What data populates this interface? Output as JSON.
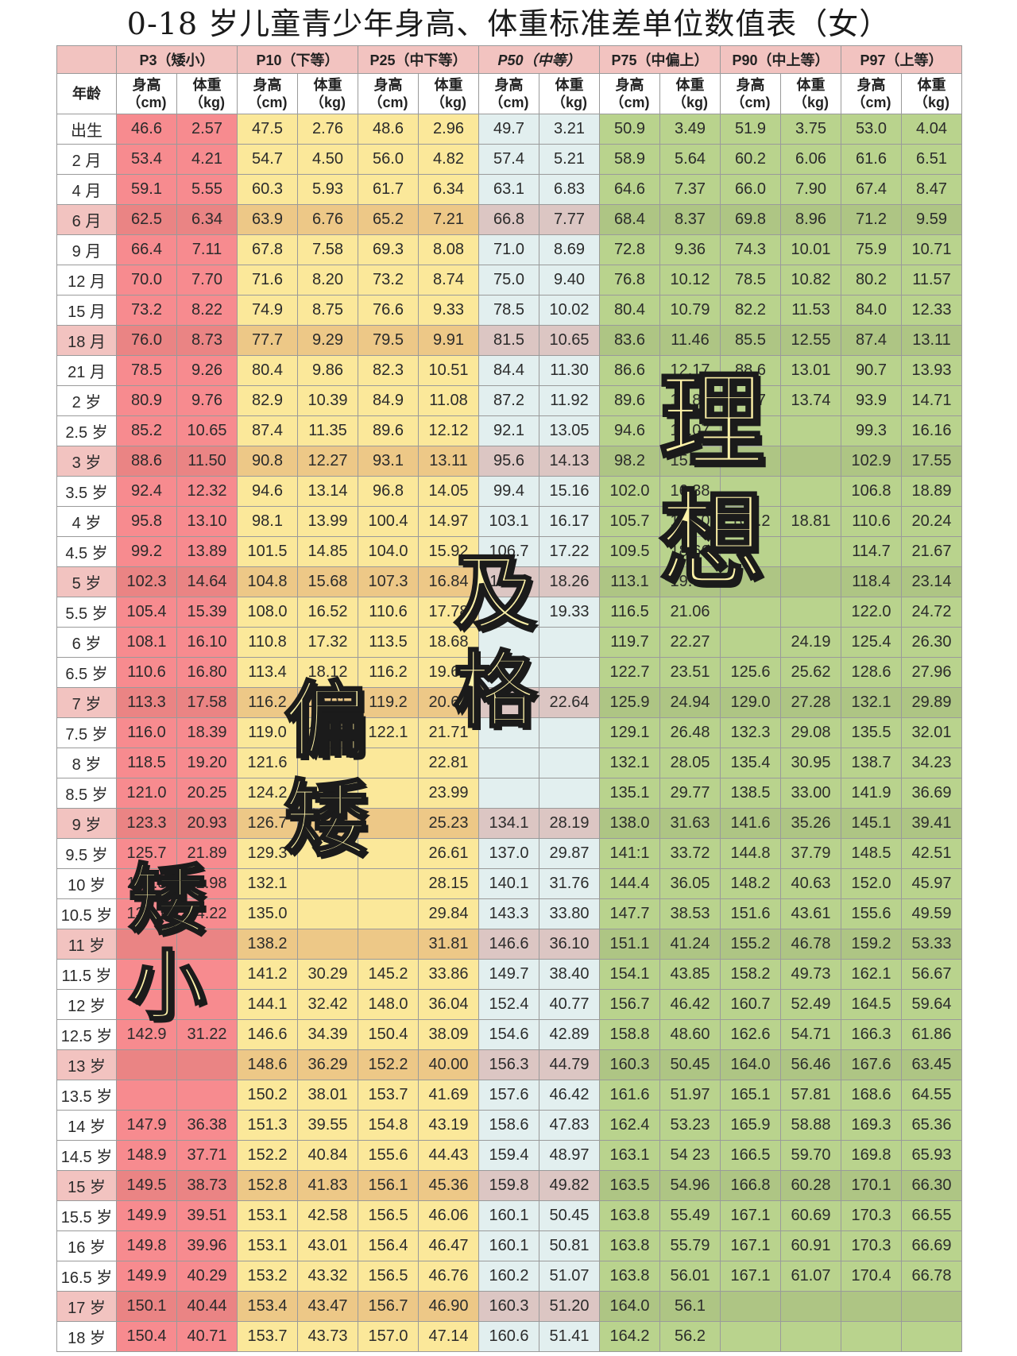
{
  "title": "0-18 岁儿童青少年身高、体重标准差单位数值表（女）",
  "header": {
    "age_label": "年龄",
    "groups": [
      "P3（矮小）",
      "P10（下等）",
      "P25（中下等）",
      "P50（中等）",
      "P75（中偏上）",
      "P90（中上等）",
      "P97（上等）"
    ],
    "height_label": "身高\n（cm)",
    "weight_label": "体重\n（kg)"
  },
  "colors": {
    "p3": "#f78b8f",
    "p10": "#fbe89a",
    "p25": "#fbe89a",
    "p50": "#e2efef",
    "p75": "#b9d38d",
    "p90": "#b9d38d",
    "p97": "#b9d38d"
  },
  "rows": [
    {
      "age": "出生",
      "v": [
        "46.6",
        "2.57",
        "47.5",
        "2.76",
        "48.6",
        "2.96",
        "49.7",
        "3.21",
        "50.9",
        "3.49",
        "51.9",
        "3.75",
        "53.0",
        "4.04"
      ]
    },
    {
      "age": "2 月",
      "v": [
        "53.4",
        "4.21",
        "54.7",
        "4.50",
        "56.0",
        "4.82",
        "57.4",
        "5.21",
        "58.9",
        "5.64",
        "60.2",
        "6.06",
        "61.6",
        "6.51"
      ]
    },
    {
      "age": "4 月",
      "v": [
        "59.1",
        "5.55",
        "60.3",
        "5.93",
        "61.7",
        "6.34",
        "63.1",
        "6.83",
        "64.6",
        "7.37",
        "66.0",
        "7.90",
        "67.4",
        "8.47"
      ]
    },
    {
      "age": "6 月",
      "v": [
        "62.5",
        "6.34",
        "63.9",
        "6.76",
        "65.2",
        "7.21",
        "66.8",
        "7.77",
        "68.4",
        "8.37",
        "69.8",
        "8.96",
        "71.2",
        "9.59"
      ]
    },
    {
      "age": "9 月",
      "v": [
        "66.4",
        "7.11",
        "67.8",
        "7.58",
        "69.3",
        "8.08",
        "71.0",
        "8.69",
        "72.8",
        "9.36",
        "74.3",
        "10.01",
        "75.9",
        "10.71"
      ]
    },
    {
      "age": "12 月",
      "v": [
        "70.0",
        "7.70",
        "71.6",
        "8.20",
        "73.2",
        "8.74",
        "75.0",
        "9.40",
        "76.8",
        "10.12",
        "78.5",
        "10.82",
        "80.2",
        "11.57"
      ]
    },
    {
      "age": "15 月",
      "v": [
        "73.2",
        "8.22",
        "74.9",
        "8.75",
        "76.6",
        "9.33",
        "78.5",
        "10.02",
        "80.4",
        "10.79",
        "82.2",
        "11.53",
        "84.0",
        "12.33"
      ]
    },
    {
      "age": "18 月",
      "v": [
        "76.0",
        "8.73",
        "77.7",
        "9.29",
        "79.5",
        "9.91",
        "81.5",
        "10.65",
        "83.6",
        "11.46",
        "85.5",
        "12.55",
        "87.4",
        "13.11"
      ]
    },
    {
      "age": "21 月",
      "v": [
        "78.5",
        "9.26",
        "80.4",
        "9.86",
        "82.3",
        "10.51",
        "84.4",
        "11.30",
        "86.6",
        "12.17",
        "88.6",
        "13.01",
        "90.7",
        "13.93"
      ]
    },
    {
      "age": "2 岁",
      "v": [
        "80.9",
        "9.76",
        "82.9",
        "10.39",
        "84.9",
        "11.08",
        "87.2",
        "11.92",
        "89.6",
        "12.84",
        "91.7",
        "13.74",
        "93.9",
        "14.71"
      ]
    },
    {
      "age": "2.5 岁",
      "v": [
        "85.2",
        "10.65",
        "87.4",
        "11.35",
        "89.6",
        "12.12",
        "92.1",
        "13.05",
        "94.6",
        "14.07",
        "",
        "",
        "99.3",
        "16.16"
      ]
    },
    {
      "age": "3 岁",
      "v": [
        "88.6",
        "11.50",
        "90.8",
        "12.27",
        "93.1",
        "13.11",
        "95.6",
        "14.13",
        "98.2",
        "15.25",
        "",
        "",
        "102.9",
        "17.55"
      ]
    },
    {
      "age": "3.5 岁",
      "v": [
        "92.4",
        "12.32",
        "94.6",
        "13.14",
        "96.8",
        "14.05",
        "99.4",
        "15.16",
        "102.0",
        "16.38",
        "",
        "",
        "106.8",
        "18.89"
      ]
    },
    {
      "age": "4 岁",
      "v": [
        "95.8",
        "13.10",
        "98.1",
        "13.99",
        "100.4",
        "14.97",
        "103.1",
        "16.17",
        "105.7",
        "17.50",
        "108.2",
        "18.81",
        "110.6",
        "20.24"
      ]
    },
    {
      "age": "4.5 岁",
      "v": [
        "99.2",
        "13.89",
        "101.5",
        "14.85",
        "104.0",
        "15.92",
        "106.7",
        "17.22",
        "109.5",
        "18.66",
        "",
        "",
        "114.7",
        "21.67"
      ]
    },
    {
      "age": "5 岁",
      "v": [
        "102.3",
        "14.64",
        "104.8",
        "15.68",
        "107.3",
        "16.84",
        "110.2",
        "18.26",
        "113.1",
        "19.83",
        "",
        "",
        "118.4",
        "23.14"
      ]
    },
    {
      "age": "5.5 岁",
      "v": [
        "105.4",
        "15.39",
        "108.0",
        "16.52",
        "110.6",
        "17.78",
        "",
        "19.33",
        "116.5",
        "21.06",
        "",
        "",
        "122.0",
        "24.72"
      ]
    },
    {
      "age": "6 岁",
      "v": [
        "108.1",
        "16.10",
        "110.8",
        "17.32",
        "113.5",
        "18.68",
        "",
        "",
        "119.7",
        "22.27",
        "",
        "24.19",
        "125.4",
        "26.30"
      ]
    },
    {
      "age": "6.5 岁",
      "v": [
        "110.6",
        "16.80",
        "113.4",
        "18.12",
        "116.2",
        "19.60",
        "",
        "",
        "122.7",
        "23.51",
        "125.6",
        "25.62",
        "128.6",
        "27.96"
      ]
    },
    {
      "age": "7 岁",
      "v": [
        "113.3",
        "17.58",
        "116.2",
        "19.01",
        "119.2",
        "20.62",
        "",
        "22.64",
        "125.9",
        "24.94",
        "129.0",
        "27.28",
        "132.1",
        "29.89"
      ]
    },
    {
      "age": "7.5 岁",
      "v": [
        "116.0",
        "18.39",
        "119.0",
        "19.95",
        "122.1",
        "21.71",
        "",
        "",
        "129.1",
        "26.48",
        "132.3",
        "29.08",
        "135.5",
        "32.01"
      ]
    },
    {
      "age": "8 岁",
      "v": [
        "118.5",
        "19.20",
        "121.6",
        "",
        "",
        "22.81",
        "",
        "",
        "132.1",
        "28.05",
        "135.4",
        "30.95",
        "138.7",
        "34.23"
      ]
    },
    {
      "age": "8.5 岁",
      "v": [
        "121.0",
        "20.25",
        "124.2",
        "",
        "",
        "23.99",
        "",
        "",
        "135.1",
        "29.77",
        "138.5",
        "33.00",
        "141.9",
        "36.69"
      ]
    },
    {
      "age": "9 岁",
      "v": [
        "123.3",
        "20.93",
        "126.7",
        "",
        "",
        "25.23",
        "134.1",
        "28.19",
        "138.0",
        "31.63",
        "141.6",
        "35.26",
        "145.1",
        "39.41"
      ]
    },
    {
      "age": "9.5 岁",
      "v": [
        "125.7",
        "21.89",
        "129.3",
        "",
        "",
        "26.61",
        "137.0",
        "29.87",
        "141:1",
        "33.72",
        "144.8",
        "37.79",
        "148.5",
        "42.51"
      ]
    },
    {
      "age": "10 岁",
      "v": [
        "128.3",
        "22.98",
        "132.1",
        "",
        "",
        "28.15",
        "140.1",
        "31.76",
        "144.4",
        "36.05",
        "148.2",
        "40.63",
        "152.0",
        "45.97"
      ]
    },
    {
      "age": "10.5 岁",
      "v": [
        "131.1",
        "24.22",
        "135.0",
        "",
        "",
        "29.84",
        "143.3",
        "33.80",
        "147.7",
        "38.53",
        "151.6",
        "43.61",
        "155.6",
        "49.59"
      ]
    },
    {
      "age": "11 岁",
      "v": [
        "",
        "",
        "138.2",
        "",
        "",
        "31.81",
        "146.6",
        "36.10",
        "151.1",
        "41.24",
        "155.2",
        "46.78",
        "159.2",
        "53.33"
      ]
    },
    {
      "age": "11.5 岁",
      "v": [
        "",
        "",
        "141.2",
        "30.29",
        "145.2",
        "33.86",
        "149.7",
        "38.40",
        "154.1",
        "43.85",
        "158.2",
        "49.73",
        "162.1",
        "56.67"
      ]
    },
    {
      "age": "12 岁",
      "v": [
        "",
        "",
        "144.1",
        "32.42",
        "148.0",
        "36.04",
        "152.4",
        "40.77",
        "156.7",
        "46.42",
        "160.7",
        "52.49",
        "164.5",
        "59.64"
      ]
    },
    {
      "age": "12.5 岁",
      "v": [
        "142.9",
        "31.22",
        "146.6",
        "34.39",
        "150.4",
        "38.09",
        "154.6",
        "42.89",
        "158.8",
        "48.60",
        "162.6",
        "54.71",
        "166.3",
        "61.86"
      ]
    },
    {
      "age": "13 岁",
      "v": [
        "",
        "",
        "148.6",
        "36.29",
        "152.2",
        "40.00",
        "156.3",
        "44.79",
        "160.3",
        "50.45",
        "164.0",
        "56.46",
        "167.6",
        "63.45"
      ]
    },
    {
      "age": "13.5 岁",
      "v": [
        "",
        "",
        "150.2",
        "38.01",
        "153.7",
        "41.69",
        "157.6",
        "46.42",
        "161.6",
        "51.97",
        "165.1",
        "57.81",
        "168.6",
        "64.55"
      ]
    },
    {
      "age": "14 岁",
      "v": [
        "147.9",
        "36.38",
        "151.3",
        "39.55",
        "154.8",
        "43.19",
        "158.6",
        "47.83",
        "162.4",
        "53.23",
        "165.9",
        "58.88",
        "169.3",
        "65.36"
      ]
    },
    {
      "age": "14.5 岁",
      "v": [
        "148.9",
        "37.71",
        "152.2",
        "40.84",
        "155.6",
        "44.43",
        "159.4",
        "48.97",
        "163.1",
        "54 23",
        "166.5",
        "59.70",
        "169.8",
        "65.93"
      ]
    },
    {
      "age": "15 岁",
      "v": [
        "149.5",
        "38.73",
        "152.8",
        "41.83",
        "156.1",
        "45.36",
        "159.8",
        "49.82",
        "163.5",
        "54.96",
        "166.8",
        "60.28",
        "170.1",
        "66.30"
      ]
    },
    {
      "age": "15.5 岁",
      "v": [
        "149.9",
        "39.51",
        "153.1",
        "42.58",
        "156.5",
        "46.06",
        "160.1",
        "50.45",
        "163.8",
        "55.49",
        "167.1",
        "60.69",
        "170.3",
        "66.55"
      ]
    },
    {
      "age": "16 岁",
      "v": [
        "149.8",
        "39.96",
        "153.1",
        "43.01",
        "156.4",
        "46.47",
        "160.1",
        "50.81",
        "163.8",
        "55.79",
        "167.1",
        "60.91",
        "170.3",
        "66.69"
      ]
    },
    {
      "age": "16.5 岁",
      "v": [
        "149.9",
        "40.29",
        "153.2",
        "43.32",
        "156.5",
        "46.76",
        "160.2",
        "51.07",
        "163.8",
        "56.01",
        "167.1",
        "61.07",
        "170.4",
        "66.78"
      ]
    },
    {
      "age": "17 岁",
      "v": [
        "150.1",
        "40.44",
        "153.4",
        "43.47",
        "156.7",
        "46.90",
        "160.3",
        "51.20",
        "164.0",
        "56.1",
        "",
        "",
        "",
        ""
      ]
    },
    {
      "age": "18 岁",
      "v": [
        "150.4",
        "40.71",
        "153.7",
        "43.73",
        "157.0",
        "47.14",
        "160.6",
        "51.41",
        "164.2",
        "56.2",
        "",
        "",
        "",
        ""
      ]
    }
  ],
  "overlays": {
    "short": "矮小",
    "below_avg": "偏矮",
    "pass": "及格",
    "ideal": "理想"
  }
}
